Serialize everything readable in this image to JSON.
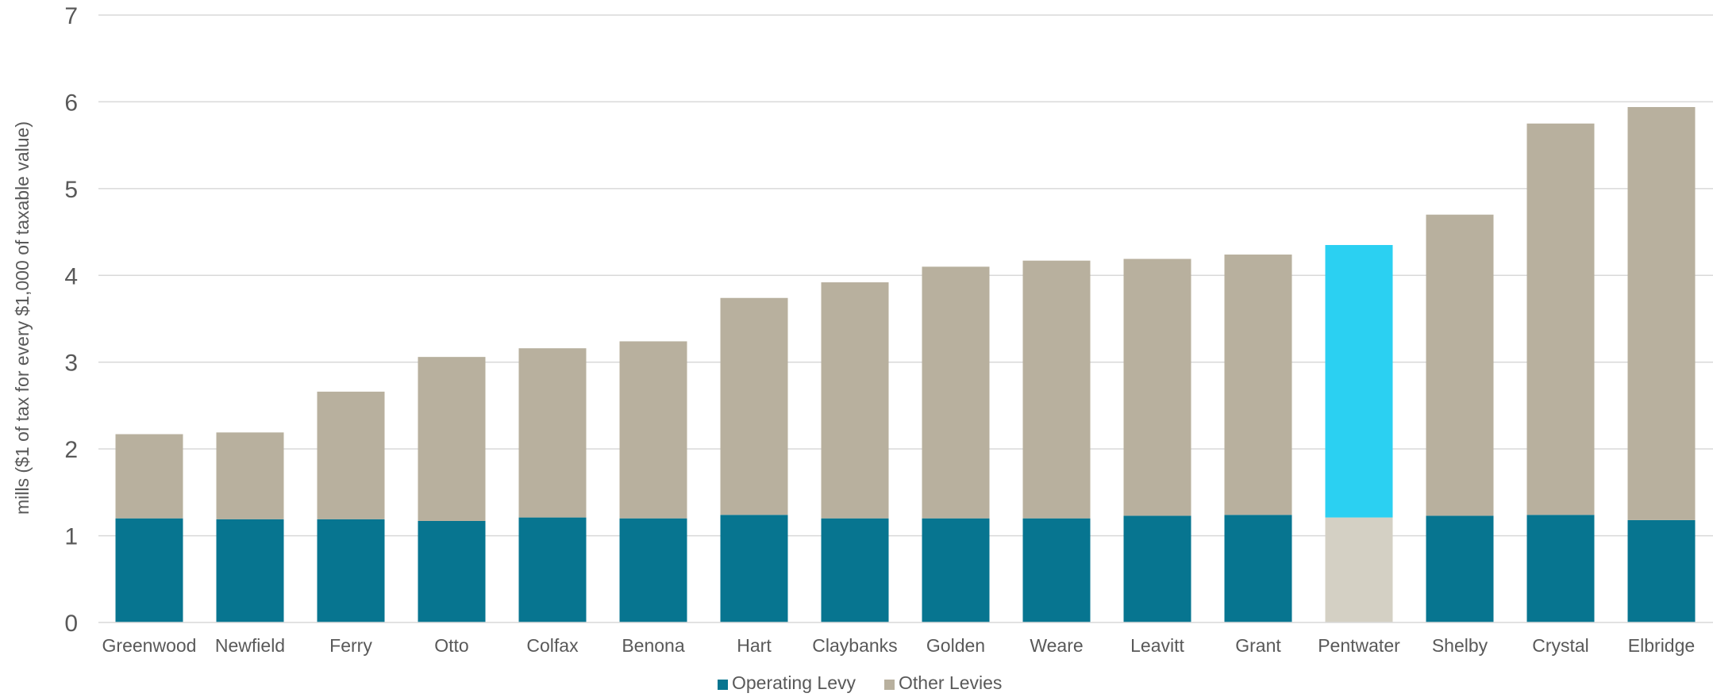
{
  "chart_data": {
    "type": "bar",
    "stacked": true,
    "title": "",
    "xlabel": "",
    "ylabel": "mills ($1 of tax for every $1,000 of taxable value)",
    "ylim": [
      0,
      7
    ],
    "yticks": [
      "0",
      "1",
      "2",
      "3",
      "4",
      "5",
      "6",
      "7"
    ],
    "grid": true,
    "legend_position": "bottom",
    "categories": [
      "Greenwood",
      "Newfield",
      "Ferry",
      "Otto",
      "Colfax",
      "Benona",
      "Hart",
      "Claybanks",
      "Golden",
      "Weare",
      "Leavitt",
      "Grant",
      "Pentwater",
      "Shelby",
      "Crystal",
      "Elbridge"
    ],
    "series": [
      {
        "name": "Operating Levy",
        "color": "#077590",
        "values": [
          1.2,
          1.19,
          1.19,
          1.17,
          1.21,
          1.2,
          1.24,
          1.2,
          1.2,
          1.2,
          1.23,
          1.24,
          1.21,
          1.23,
          1.24,
          1.18
        ]
      },
      {
        "name": "Other Levies",
        "color": "#B8B09E",
        "values": [
          0.97,
          1.0,
          1.47,
          1.89,
          1.95,
          2.04,
          2.5,
          2.72,
          2.9,
          2.97,
          2.96,
          3.0,
          3.14,
          3.47,
          4.51,
          4.76
        ]
      }
    ],
    "highlight": {
      "category": "Pentwater",
      "operating_color": "#D4D0C4",
      "other_color": "#2BD0F2"
    }
  }
}
